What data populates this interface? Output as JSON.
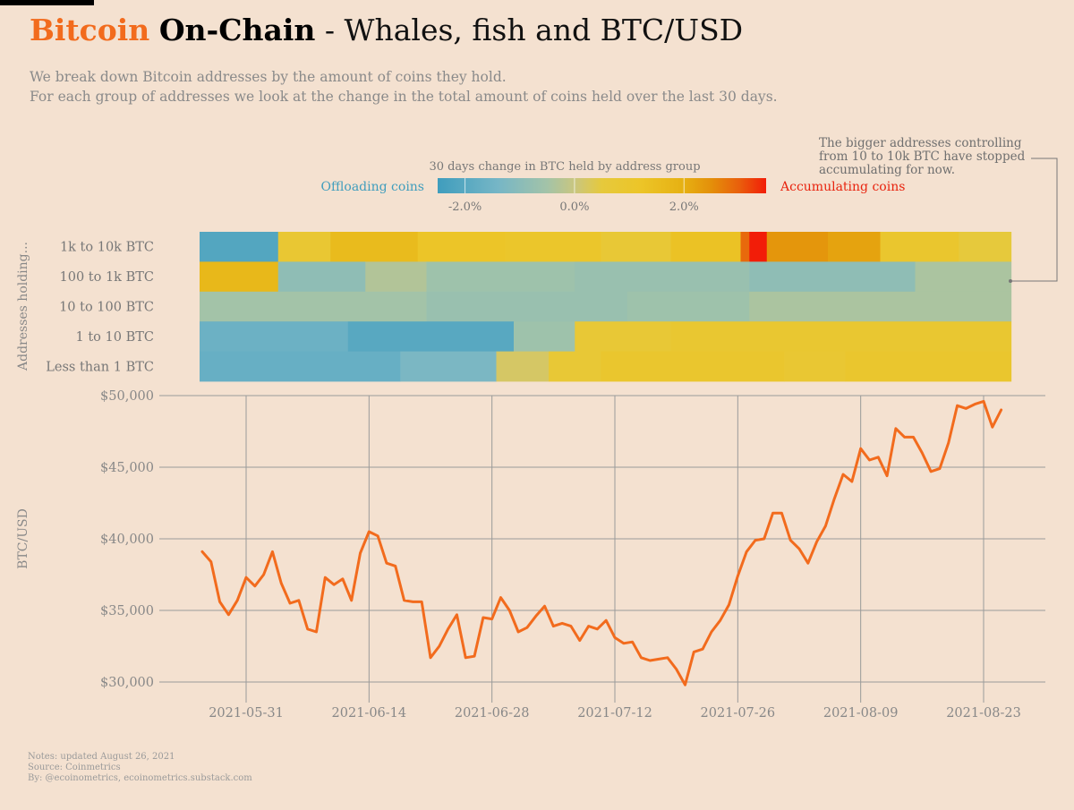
{
  "title": {
    "brand": "Bitcoin",
    "bold": "On-Chain",
    "rest": "- Whales, fish and BTC/USD"
  },
  "subtitle": [
    "We break down Bitcoin addresses by the amount of coins they hold.",
    "For each group of addresses we look at the change in the total amount of coins held over the last 30 days."
  ],
  "annotation": [
    "The bigger addresses controlling",
    "from 10 to 10k BTC have stopped",
    "accumulating for now."
  ],
  "notes": [
    "Notes: updated August 26, 2021",
    "Source: Coinmetrics",
    "By: @ecoinometrics, ecoinometrics.substack.com"
  ],
  "colors": {
    "background": "#f4e1d0",
    "brand": "#f26b1d",
    "line": "#f26b1d",
    "offloading": "#3f9dbd",
    "accumulating": "#e8230e",
    "grid": "#9a9a9a",
    "text_muted": "#8a8a8a"
  },
  "chart_data": [
    {
      "type": "heatmap",
      "title": "30 days change in BTC held by address group",
      "ylabel": "Addresses holding...",
      "legend": {
        "low_label": "Offloading coins",
        "high_label": "Accumulating coins",
        "ticks": [
          "-2.0%",
          "0.0%",
          "2.0%"
        ],
        "tick_values": [
          -2.0,
          0.0,
          2.0
        ],
        "range": [
          -2.5,
          3.5
        ],
        "stops": [
          [
            -2.5,
            "#3f9dbd"
          ],
          [
            -1.4,
            "#76b6c6"
          ],
          [
            -0.5,
            "#a3c3a8"
          ],
          [
            0.0,
            "#c9c680"
          ],
          [
            0.5,
            "#e6c93c"
          ],
          [
            1.2,
            "#ecc528"
          ],
          [
            2.0,
            "#e6b012"
          ],
          [
            2.5,
            "#e48f0a"
          ],
          [
            3.0,
            "#e9600c"
          ],
          [
            3.5,
            "#f21d08"
          ]
        ]
      },
      "rows": [
        "1k to 10k BTC",
        "100 to 1k BTC",
        "10 to 100 BTC",
        "1 to 10 BTC",
        "Less than 1 BTC"
      ],
      "segments": [
        [
          {
            "from": "2021-05-26",
            "to": "2021-06-03",
            "v": -2.1
          },
          {
            "from": "2021-06-04",
            "to": "2021-06-09",
            "v": 0.8
          },
          {
            "from": "2021-06-10",
            "to": "2021-06-19",
            "v": 1.6
          },
          {
            "from": "2021-06-20",
            "to": "2021-06-29",
            "v": 1.2
          },
          {
            "from": "2021-06-30",
            "to": "2021-07-10",
            "v": 1.1
          },
          {
            "from": "2021-07-11",
            "to": "2021-07-18",
            "v": 0.7
          },
          {
            "from": "2021-07-19",
            "to": "2021-07-26",
            "v": 1.3
          },
          {
            "from": "2021-07-27",
            "to": "2021-07-27",
            "v": 2.9
          },
          {
            "from": "2021-07-28",
            "to": "2021-07-29",
            "v": 3.5
          },
          {
            "from": "2021-07-30",
            "to": "2021-08-05",
            "v": 2.4
          },
          {
            "from": "2021-08-06",
            "to": "2021-08-11",
            "v": 2.2
          },
          {
            "from": "2021-08-12",
            "to": "2021-08-20",
            "v": 1.0
          },
          {
            "from": "2021-08-21",
            "to": "2021-08-26",
            "v": 0.5
          }
        ],
        [
          {
            "from": "2021-05-26",
            "to": "2021-06-03",
            "v": 1.7
          },
          {
            "from": "2021-06-04",
            "to": "2021-06-13",
            "v": -0.9
          },
          {
            "from": "2021-06-14",
            "to": "2021-06-20",
            "v": -0.3
          },
          {
            "from": "2021-06-21",
            "to": "2021-07-07",
            "v": -0.6
          },
          {
            "from": "2021-07-08",
            "to": "2021-07-27",
            "v": -0.7
          },
          {
            "from": "2021-07-28",
            "to": "2021-08-15",
            "v": -0.9
          },
          {
            "from": "2021-08-16",
            "to": "2021-08-26",
            "v": -0.4
          }
        ],
        [
          {
            "from": "2021-05-26",
            "to": "2021-06-20",
            "v": -0.5
          },
          {
            "from": "2021-06-21",
            "to": "2021-07-13",
            "v": -0.7
          },
          {
            "from": "2021-07-14",
            "to": "2021-07-27",
            "v": -0.6
          },
          {
            "from": "2021-07-28",
            "to": "2021-08-26",
            "v": -0.4
          }
        ],
        [
          {
            "from": "2021-05-26",
            "to": "2021-06-11",
            "v": -1.6
          },
          {
            "from": "2021-06-12",
            "to": "2021-06-30",
            "v": -2.0
          },
          {
            "from": "2021-07-01",
            "to": "2021-07-07",
            "v": -0.6
          },
          {
            "from": "2021-07-08",
            "to": "2021-07-18",
            "v": 0.7
          },
          {
            "from": "2021-07-19",
            "to": "2021-08-26",
            "v": 0.9
          }
        ],
        [
          {
            "from": "2021-05-26",
            "to": "2021-06-17",
            "v": -1.7
          },
          {
            "from": "2021-06-18",
            "to": "2021-06-28",
            "v": -1.3
          },
          {
            "from": "2021-06-29",
            "to": "2021-07-04",
            "v": 0.2
          },
          {
            "from": "2021-07-05",
            "to": "2021-07-10",
            "v": 0.7
          },
          {
            "from": "2021-07-11",
            "to": "2021-07-31",
            "v": 1.0
          },
          {
            "from": "2021-08-01",
            "to": "2021-08-07",
            "v": 0.8
          },
          {
            "from": "2021-08-08",
            "to": "2021-08-26",
            "v": 1.0
          }
        ]
      ]
    },
    {
      "type": "line",
      "xlabel": "",
      "ylabel": "BTC/USD",
      "ylim": [
        30000,
        50000
      ],
      "yticks": [
        30000,
        35000,
        40000,
        45000,
        50000
      ],
      "ytick_labels": [
        "$30,000",
        "$35,000",
        "$40,000",
        "$45,000",
        "$50,000"
      ],
      "xticks": [
        "2021-05-31",
        "2021-06-14",
        "2021-06-28",
        "2021-07-12",
        "2021-07-26",
        "2021-08-09",
        "2021-08-23"
      ],
      "grid": true,
      "start_date": "2021-05-26",
      "series": [
        {
          "values": [
            39100,
            38400,
            35600,
            34700,
            35700,
            37300,
            36700,
            37500,
            39100,
            36900,
            35500,
            35700,
            33700,
            33500,
            37300,
            36800,
            37200,
            35700,
            39000,
            40500,
            40200,
            38300,
            38100,
            35700,
            35600,
            35600,
            31700,
            32500,
            33700,
            34700,
            31700,
            31800,
            34500,
            34400,
            35900,
            35000,
            33500,
            33800,
            34600,
            35300,
            33900,
            34100,
            33900,
            32900,
            33900,
            33700,
            34300,
            33100,
            32700,
            32800,
            31700,
            31500,
            31600,
            31700,
            30900,
            29800,
            32100,
            32300,
            33500,
            34300,
            35400,
            37400,
            39100,
            39900,
            40000,
            41800,
            41800,
            39900,
            39300,
            38300,
            39800,
            40900,
            42800,
            44500,
            44000,
            46300,
            45500,
            45700,
            44400,
            47700,
            47100,
            47100,
            46000,
            44700,
            44900,
            46700,
            49300,
            49100,
            49400,
            49600,
            47800,
            49000
          ]
        }
      ]
    }
  ]
}
